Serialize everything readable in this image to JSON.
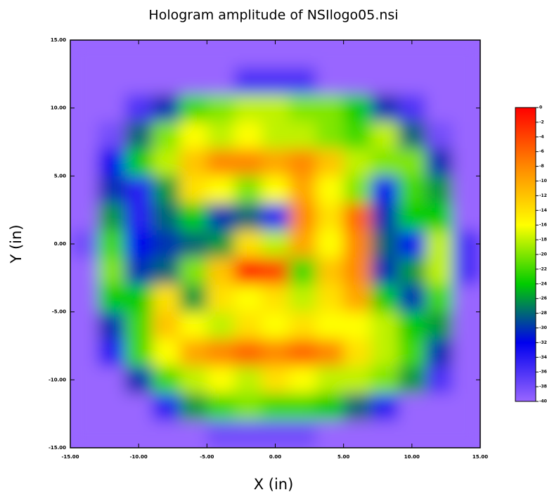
{
  "chart_data": {
    "type": "heatmap",
    "title": "Hologram amplitude of NSIlogo05.nsi",
    "xlabel": "X (in)",
    "ylabel": "Y (in)",
    "xlim": [
      -15,
      15
    ],
    "ylim": [
      -15,
      15
    ],
    "xticks": [
      {
        "value": -15,
        "label": "-15.00"
      },
      {
        "value": -10,
        "label": "-10.00"
      },
      {
        "value": -5,
        "label": "-5.00"
      },
      {
        "value": 0,
        "label": "0.00"
      },
      {
        "value": 5,
        "label": "5.00"
      },
      {
        "value": 10,
        "label": "10.00"
      },
      {
        "value": 15,
        "label": "15.00"
      }
    ],
    "yticks": [
      {
        "value": -15,
        "label": "-15.00"
      },
      {
        "value": -10,
        "label": "-10.00"
      },
      {
        "value": -5,
        "label": "-5.00"
      },
      {
        "value": 0,
        "label": "0.00"
      },
      {
        "value": 5,
        "label": "5.00"
      },
      {
        "value": 10,
        "label": "10.00"
      },
      {
        "value": 15,
        "label": "15.00"
      }
    ],
    "x": [
      -14,
      -12,
      -10,
      -8,
      -6,
      -4,
      -2,
      0,
      2,
      4,
      6,
      8,
      10,
      12,
      14
    ],
    "y": [
      14,
      12,
      10,
      8,
      6,
      4,
      2,
      0,
      -2,
      -4,
      -6,
      -8,
      -10,
      -12,
      -14
    ],
    "z": [
      [
        -40,
        -40,
        -40,
        -40,
        -40,
        -40,
        -40,
        -40,
        -40,
        -40,
        -40,
        -40,
        -40,
        -40,
        -40
      ],
      [
        -40,
        -40,
        -40,
        -40,
        -40,
        -40,
        -36,
        -36,
        -36,
        -40,
        -40,
        -40,
        -40,
        -40,
        -40
      ],
      [
        -40,
        -40,
        -36,
        -30,
        -22,
        -20,
        -18,
        -18,
        -20,
        -20,
        -24,
        -30,
        -36,
        -40,
        -40
      ],
      [
        -40,
        -38,
        -28,
        -20,
        -16,
        -18,
        -16,
        -18,
        -18,
        -20,
        -22,
        -18,
        -28,
        -38,
        -40
      ],
      [
        -40,
        -32,
        -24,
        -18,
        -12,
        -8,
        -8,
        -10,
        -8,
        -12,
        -18,
        -20,
        -20,
        -30,
        -40
      ],
      [
        -40,
        -30,
        -34,
        -26,
        -14,
        -16,
        -20,
        -16,
        -10,
        -16,
        -20,
        -32,
        -22,
        -26,
        -40
      ],
      [
        -40,
        -26,
        -34,
        -28,
        -24,
        -30,
        -28,
        -34,
        -8,
        -14,
        -6,
        -30,
        -24,
        -24,
        -40
      ],
      [
        -38,
        -22,
        -32,
        -30,
        -28,
        -26,
        -14,
        -18,
        -10,
        -16,
        -8,
        -28,
        -32,
        -18,
        -36
      ],
      [
        -40,
        -20,
        -30,
        -28,
        -20,
        -12,
        -2,
        -4,
        -22,
        -12,
        -8,
        -30,
        -26,
        -18,
        -36
      ],
      [
        -40,
        -24,
        -24,
        -14,
        -26,
        -14,
        -16,
        -14,
        -18,
        -14,
        -10,
        -24,
        -30,
        -22,
        -40
      ],
      [
        -40,
        -30,
        -22,
        -12,
        -16,
        -18,
        -14,
        -16,
        -14,
        -16,
        -16,
        -18,
        -24,
        -26,
        -40
      ],
      [
        -40,
        -34,
        -22,
        -16,
        -10,
        -8,
        -6,
        -8,
        -6,
        -8,
        -14,
        -18,
        -22,
        -30,
        -40
      ],
      [
        -40,
        -40,
        -30,
        -22,
        -18,
        -16,
        -18,
        -14,
        -16,
        -18,
        -18,
        -20,
        -26,
        -36,
        -40
      ],
      [
        -40,
        -40,
        -40,
        -34,
        -26,
        -22,
        -20,
        -22,
        -22,
        -24,
        -28,
        -34,
        -40,
        -40,
        -40
      ],
      [
        -40,
        -40,
        -40,
        -40,
        -40,
        -38,
        -38,
        -38,
        -38,
        -40,
        -40,
        -40,
        -40,
        -40,
        -40
      ]
    ],
    "zlim": [
      -40,
      0
    ],
    "zticks": [
      0,
      -2,
      -4,
      -6,
      -8,
      -10,
      -12,
      -14,
      -16,
      -18,
      -20,
      -22,
      -24,
      -26,
      -28,
      -30,
      -32,
      -34,
      -36,
      -38,
      -40
    ],
    "colorscale": [
      "#9966ff",
      "#0000ee",
      "#00cc00",
      "#ffff00",
      "#ff8800",
      "#ff0000"
    ]
  }
}
